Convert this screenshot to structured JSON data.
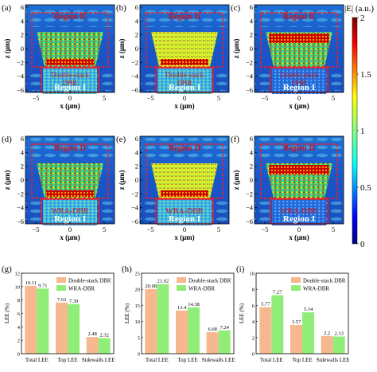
{
  "colorbar": {
    "label": "|E| (a.u.)",
    "ticks": [
      "2",
      "1.5",
      "1",
      "0.5",
      "0"
    ]
  },
  "field_panels": [
    {
      "letter": "(a)",
      "region_top": "Region II",
      "region_bottom": "Region I",
      "dbr": [
        "Double-stack",
        "DBR"
      ],
      "style": "a"
    },
    {
      "letter": "(b)",
      "region_top": "Region II",
      "region_bottom": "Region I",
      "dbr": [
        "Double-stack",
        "DBR"
      ],
      "style": "b"
    },
    {
      "letter": "(c)",
      "region_top": "Region II",
      "region_bottom": "Region I",
      "dbr": [
        "Double-stack",
        "DBR"
      ],
      "style": "c"
    },
    {
      "letter": "(d)",
      "region_top": "Region II",
      "region_bottom": "Region I",
      "dbr": [
        "WRA-DBR"
      ],
      "style": "a"
    },
    {
      "letter": "(e)",
      "region_top": "Region II",
      "region_bottom": "Region I",
      "dbr": [
        "WRA-DBR"
      ],
      "style": "b"
    },
    {
      "letter": "(f)",
      "region_top": "Region II",
      "region_bottom": "Region I",
      "dbr": [
        "WRA-DBR"
      ],
      "style": "c"
    }
  ],
  "field_axes": {
    "xlabel": "x (μm)",
    "ylabel": "z (μm)",
    "xticks": [
      "−5",
      "0",
      "5"
    ],
    "yticks": [
      "6",
      "4",
      "2",
      "0",
      "−2",
      "−4",
      "−6"
    ]
  },
  "chart_data": [
    {
      "type": "bar",
      "letter": "(g)",
      "categories": [
        "Total LEE",
        "Top LEE",
        "Sidewalls LEE"
      ],
      "series": [
        {
          "name": "Double-stack DBR",
          "values": [
            10.11,
            7.63,
            2.48
          ],
          "labels": [
            "10.11",
            "7.63",
            "2.48"
          ],
          "color": "#f6b88f"
        },
        {
          "name": "WRA-DBR",
          "values": [
            9.71,
            7.39,
            2.32
          ],
          "labels": [
            "9.71",
            "7.39",
            "2.32"
          ],
          "color": "#90ee78"
        }
      ],
      "ylabel": "LEE (%)",
      "ylim": [
        0,
        12
      ],
      "yticks": [
        "0",
        "2",
        "4",
        "6",
        "8",
        "10",
        "12"
      ],
      "legend": "top-right"
    },
    {
      "type": "bar",
      "letter": "(h)",
      "categories": [
        "Total LEE",
        "Top LEE",
        "Sidewalls LEE"
      ],
      "series": [
        {
          "name": "Double-stack DBR",
          "values": [
            20.08,
            13.4,
            6.68
          ],
          "labels": [
            "20.08",
            "13.4",
            "6.68"
          ],
          "color": "#f6b88f"
        },
        {
          "name": "WRA-DBR",
          "values": [
            21.62,
            14.38,
            7.24
          ],
          "labels": [
            "21.62",
            "14.38",
            "7.24"
          ],
          "color": "#90ee78"
        }
      ],
      "ylabel": "LEE (%)",
      "ylim": [
        0,
        25
      ],
      "yticks": [
        "0",
        "5",
        "10",
        "15",
        "20",
        "25"
      ],
      "legend": "top-right"
    },
    {
      "type": "bar",
      "letter": "(i)",
      "categories": [
        "Total LEE",
        "Top LEE",
        "Sidewalls LEE"
      ],
      "series": [
        {
          "name": "Double-stack DBR",
          "values": [
            5.77,
            3.57,
            2.2
          ],
          "labels": [
            "5.77",
            "3.57",
            "2.2"
          ],
          "color": "#f6b88f"
        },
        {
          "name": "WRA-DBR",
          "values": [
            7.27,
            5.14,
            2.13
          ],
          "labels": [
            "7.27",
            "5.14",
            "2.13"
          ],
          "color": "#90ee78"
        }
      ],
      "ylabel": "LEE (%)",
      "ylim": [
        0,
        10
      ],
      "yticks": [
        "0",
        "2",
        "4",
        "6",
        "8",
        "10"
      ],
      "legend": "top-right"
    }
  ]
}
